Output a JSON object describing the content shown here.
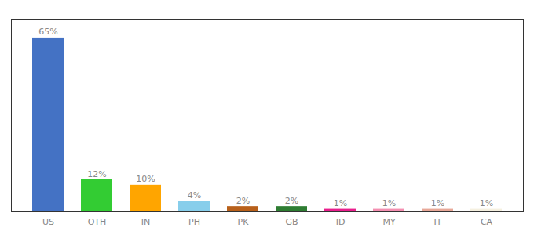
{
  "chart_data": {
    "type": "bar",
    "categories": [
      "US",
      "OTH",
      "IN",
      "PH",
      "PK",
      "GB",
      "ID",
      "MY",
      "IT",
      "CA"
    ],
    "values": [
      65,
      12,
      10,
      4,
      2,
      2,
      1,
      1,
      1,
      1
    ],
    "value_labels": [
      "65%",
      "12%",
      "10%",
      "4%",
      "2%",
      "2%",
      "1%",
      "1%",
      "1%",
      "1%"
    ],
    "colors": [
      "#4472c4",
      "#33cc33",
      "#ffa500",
      "#87ceeb",
      "#b8601a",
      "#2e7d32",
      "#e91e8c",
      "#f48fb1",
      "#e8a898",
      "#f5f0e0"
    ],
    "ylim": [
      0,
      72
    ],
    "tick_labels": "x",
    "data_labels": true
  }
}
